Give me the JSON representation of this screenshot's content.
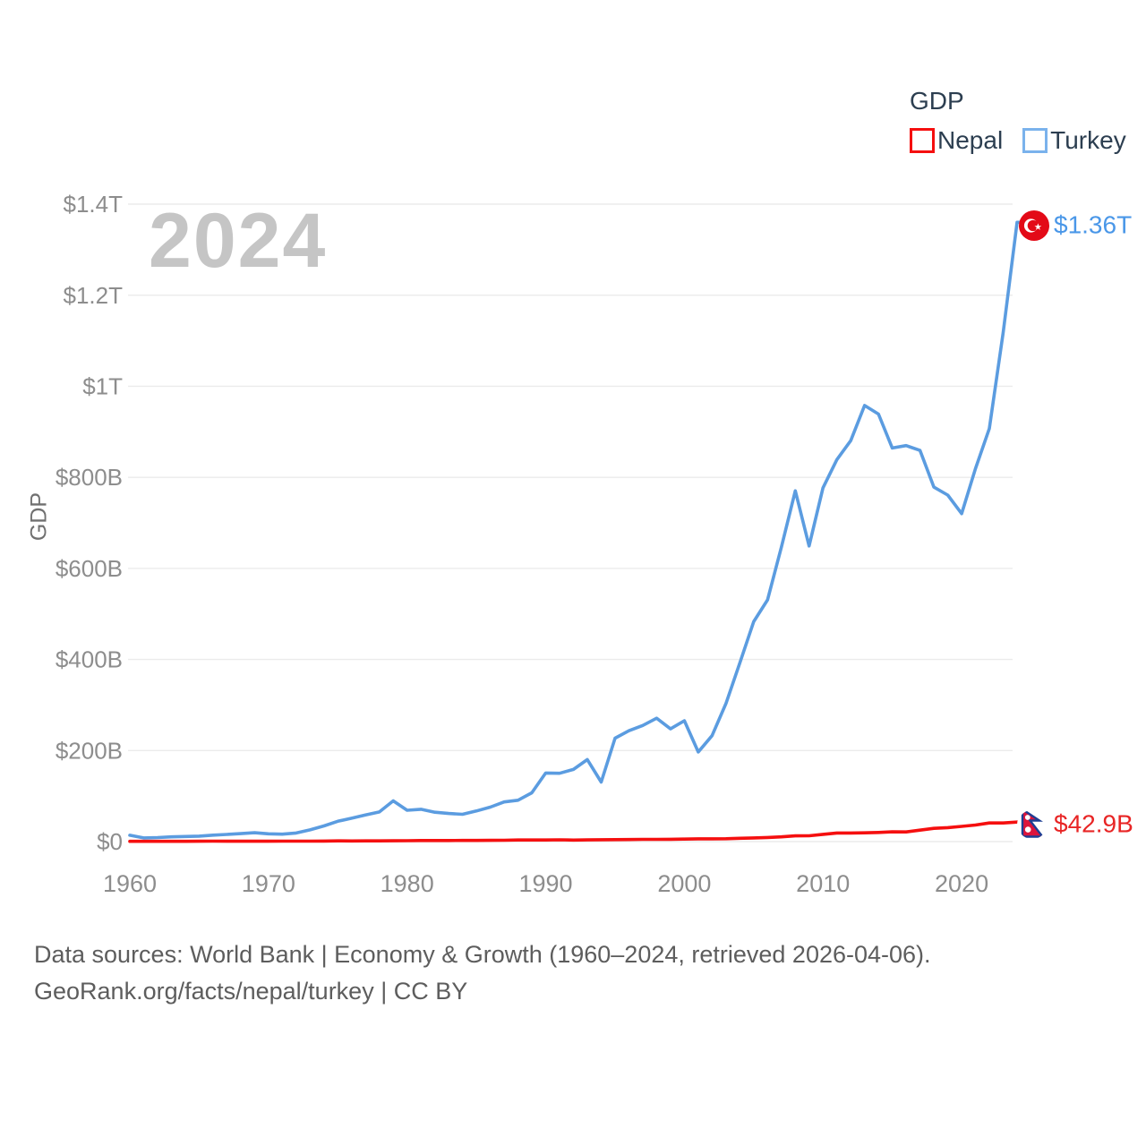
{
  "legend": {
    "title": "GDP",
    "items": [
      {
        "label": "Nepal",
        "color": "#f50f0f"
      },
      {
        "label": "Turkey",
        "color": "#7ab2ec"
      }
    ]
  },
  "chart_data": {
    "type": "line",
    "title": "GDP",
    "watermark": "2024",
    "ylabel": "GDP",
    "units": "USD (B = billions, T = trillions)",
    "xlim": [
      1960,
      2024
    ],
    "ylim_billions": [
      0,
      1400
    ],
    "grid": true,
    "legend_position": "top-right",
    "x_ticks": [
      1960,
      1970,
      1980,
      1990,
      2000,
      2010,
      2020
    ],
    "y_ticks": [
      {
        "value": 0,
        "label": "$0"
      },
      {
        "value": 200,
        "label": "$200B"
      },
      {
        "value": 400,
        "label": "$400B"
      },
      {
        "value": 600,
        "label": "$600B"
      },
      {
        "value": 800,
        "label": "$800B"
      },
      {
        "value": 1000,
        "label": "$1T"
      },
      {
        "value": 1200,
        "label": "$1.2T"
      },
      {
        "value": 1400,
        "label": "$1.4T"
      }
    ],
    "years": [
      1960,
      1961,
      1962,
      1963,
      1964,
      1965,
      1966,
      1967,
      1968,
      1969,
      1970,
      1971,
      1972,
      1973,
      1974,
      1975,
      1976,
      1977,
      1978,
      1979,
      1980,
      1981,
      1982,
      1983,
      1984,
      1985,
      1986,
      1987,
      1988,
      1989,
      1990,
      1991,
      1992,
      1993,
      1994,
      1995,
      1996,
      1997,
      1998,
      1999,
      2000,
      2001,
      2002,
      2003,
      2004,
      2005,
      2006,
      2007,
      2008,
      2009,
      2010,
      2011,
      2012,
      2013,
      2014,
      2015,
      2016,
      2017,
      2018,
      2019,
      2020,
      2021,
      2022,
      2023,
      2024
    ],
    "series": [
      {
        "name": "Turkey",
        "color": "#5b9ce0",
        "values_billions": [
          13.99,
          7.99,
          8.92,
          10.36,
          11.18,
          11.95,
          14.12,
          15.66,
          17.5,
          19.47,
          17.09,
          16.25,
          18.93,
          25.67,
          34.45,
          44.63,
          51.28,
          58.68,
          65.15,
          89.39,
          68.79,
          71.04,
          64.55,
          61.68,
          59.99,
          67.23,
          75.73,
          87.17,
          90.85,
          107.14,
          150.68,
          150.03,
          158.46,
          180.17,
          130.69,
          227.04,
          243.41,
          255.09,
          270.95,
          247.54,
          265.38,
          196.74,
          232.53,
          303.01,
          392.17,
          483.0,
          530.9,
          647.16,
          770.45,
          649.29,
          776.97,
          838.76,
          880.56,
          957.8,
          938.93,
          864.31,
          869.68,
          858.99,
          778.47,
          760.93,
          720.29,
          819.04,
          907.12,
          1118.25,
          1360.0
        ]
      },
      {
        "name": "Nepal",
        "color": "#f50f0f",
        "values_billions": [
          0.51,
          0.54,
          0.55,
          0.52,
          0.6,
          0.74,
          0.91,
          0.84,
          0.77,
          0.79,
          0.87,
          0.91,
          1.02,
          0.97,
          1.1,
          1.6,
          1.39,
          1.48,
          1.61,
          1.82,
          1.95,
          2.27,
          2.39,
          2.44,
          2.58,
          2.62,
          2.85,
          2.96,
          3.49,
          3.52,
          3.63,
          3.92,
          3.38,
          3.66,
          4.07,
          4.4,
          4.52,
          4.92,
          4.86,
          5.03,
          5.49,
          6.01,
          6.05,
          6.33,
          7.27,
          8.13,
          9.03,
          10.33,
          12.55,
          12.85,
          16.0,
          18.91,
          18.85,
          19.27,
          20.0,
          21.41,
          21.19,
          25.18,
          29.04,
          30.64,
          33.43,
          36.29,
          40.83,
          40.91,
          42.92
        ]
      }
    ],
    "end_labels": {
      "turkey": {
        "text": "$1.36T",
        "color": "#4a97e8"
      },
      "nepal": {
        "text": "$42.9B",
        "color": "#e82525"
      }
    }
  },
  "footer": {
    "line1": "Data sources: World Bank | Economy & Growth (1960–2024, retrieved 2026-04-06).",
    "line2": "GeoRank.org/facts/nepal/turkey | CC BY"
  }
}
